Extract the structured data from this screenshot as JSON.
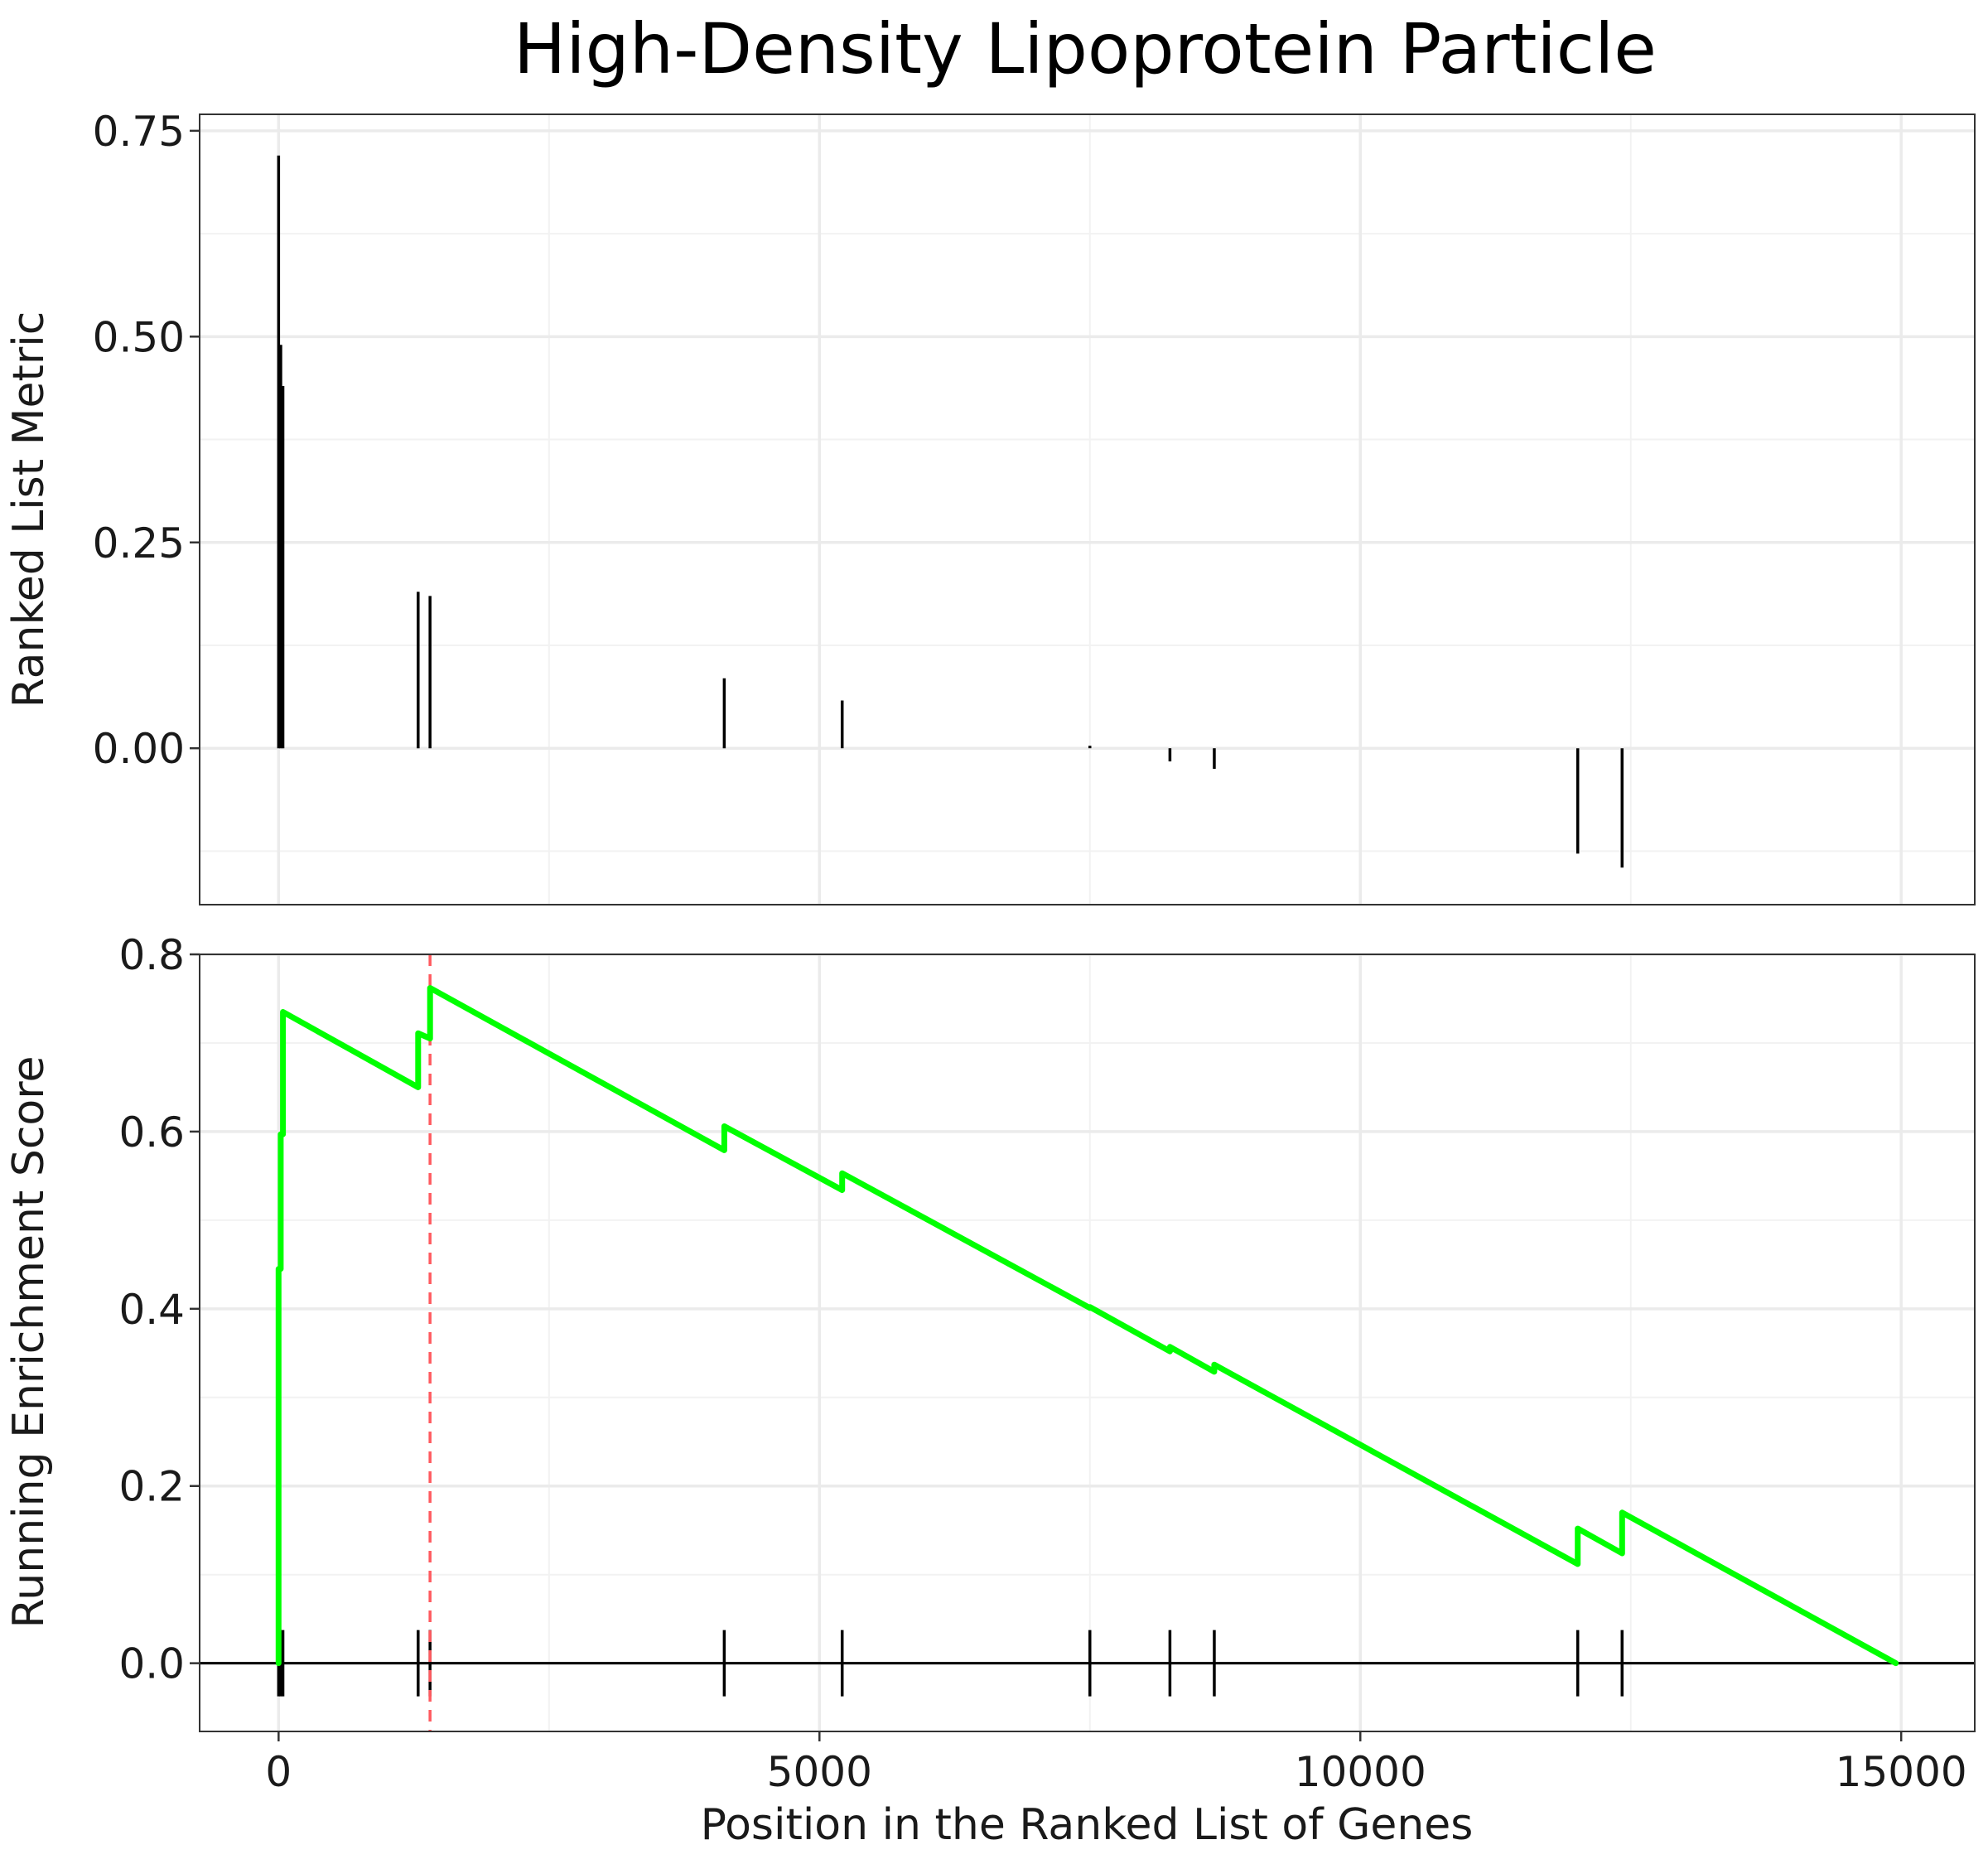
{
  "chart_data": {
    "title": "High-Density Lipoprotein Particle",
    "xlabel": "Position in the Ranked List of Genes",
    "xlim": [
      -730,
      15680
    ],
    "x_ticks": [
      0,
      5000,
      10000,
      15000
    ],
    "x_tick_labels": [
      "0",
      "5000",
      "10000",
      "15000"
    ],
    "grid": true,
    "panels": [
      {
        "type": "bar",
        "ylabel": "Ranked List Metric",
        "ylim": [
          -0.19,
          0.77
        ],
        "y_ticks": [
          0,
          0.25,
          0.5,
          0.75
        ],
        "y_tick_labels": [
          "0.00",
          "0.25",
          "0.50",
          "0.75"
        ],
        "bars": [
          {
            "x": 0,
            "y": 0.72
          },
          {
            "x": 20,
            "y": 0.49
          },
          {
            "x": 40,
            "y": 0.44
          },
          {
            "x": 1290,
            "y": 0.19
          },
          {
            "x": 1400,
            "y": 0.185
          },
          {
            "x": 4120,
            "y": 0.085
          },
          {
            "x": 5210,
            "y": 0.058
          },
          {
            "x": 7500,
            "y": 0.003
          },
          {
            "x": 8240,
            "y": -0.016
          },
          {
            "x": 8650,
            "y": -0.025
          },
          {
            "x": 12010,
            "y": -0.128
          },
          {
            "x": 12420,
            "y": -0.145
          }
        ]
      },
      {
        "type": "line",
        "ylabel": "Running Enrichment Score",
        "ylim": [
          -0.077,
          0.8
        ],
        "y_ticks": [
          0,
          0.2,
          0.4,
          0.6,
          0.8
        ],
        "y_tick_labels": [
          "0.0",
          "0.2",
          "0.4",
          "0.6",
          "0.8"
        ],
        "line_color": "#00ff00",
        "peak_marker": {
          "x": 1400,
          "color": "#ff5a5f",
          "style": "dashed"
        },
        "series": [
          {
            "x": [
              0,
              0,
              20,
              20,
              40,
              40,
              1290,
              1290,
              1400,
              1400,
              4120,
              4120,
              5210,
              5210,
              7500,
              7500,
              8240,
              8240,
              8650,
              8650,
              12010,
              12010,
              12420,
              12420,
              14950
            ],
            "y": [
              0,
              0.445,
              0.445,
              0.597,
              0.597,
              0.735,
              0.65,
              0.711,
              0.705,
              0.762,
              0.579,
              0.606,
              0.534,
              0.553,
              0.401,
              0.402,
              0.352,
              0.357,
              0.329,
              0.337,
              0.112,
              0.152,
              0.124,
              0.17,
              0
            ]
          }
        ],
        "hit_positions": [
          0,
          20,
          40,
          1290,
          1400,
          4120,
          5210,
          7500,
          8240,
          8650,
          12010,
          12420
        ]
      }
    ]
  }
}
